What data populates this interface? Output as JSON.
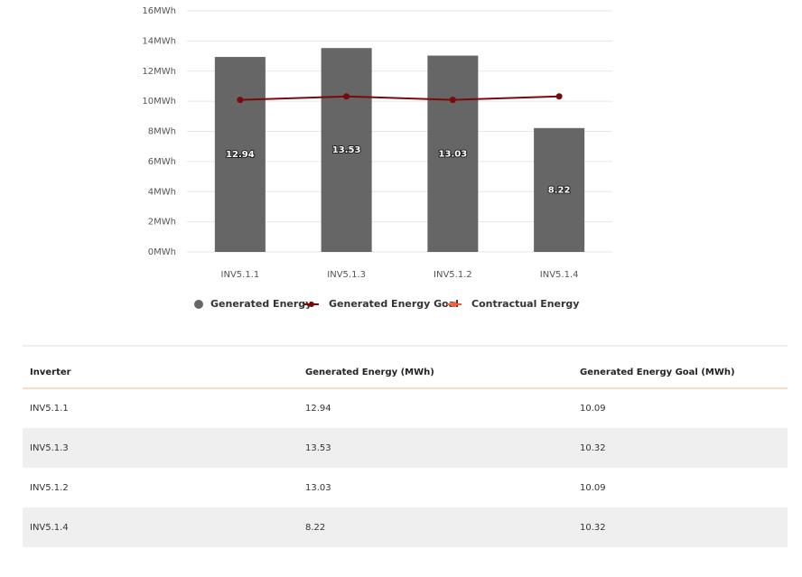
{
  "chart_data": {
    "type": "bar",
    "categories": [
      "INV5.1.1",
      "INV5.1.3",
      "INV5.1.2",
      "INV5.1.4"
    ],
    "series": [
      {
        "name": "Generated Energy",
        "type": "bar",
        "color": "#666666",
        "values": [
          12.94,
          13.53,
          13.03,
          8.22
        ]
      },
      {
        "name": "Generated Energy Goal",
        "type": "line",
        "color": "#7a0a0a",
        "values": [
          10.09,
          10.32,
          10.09,
          10.32
        ]
      },
      {
        "name": "Contractual Energy",
        "type": "line",
        "color": "#ff5a36",
        "values": [
          null,
          null,
          null,
          null
        ]
      }
    ],
    "ylim": [
      0,
      16
    ],
    "yticks": [
      {
        "value": 0,
        "label": "0MWh"
      },
      {
        "value": 2,
        "label": "2MWh"
      },
      {
        "value": 4,
        "label": "4MWh"
      },
      {
        "value": 6,
        "label": "6MWh"
      },
      {
        "value": 8,
        "label": "8MWh"
      },
      {
        "value": 10,
        "label": "10MWh"
      },
      {
        "value": 12,
        "label": "12MWh"
      },
      {
        "value": 14,
        "label": "14MWh"
      },
      {
        "value": 16,
        "label": "16MWh"
      }
    ],
    "grid": true,
    "legend": "bottom"
  },
  "table": {
    "header": [
      "Inverter",
      "Generated Energy (MWh)",
      "Generated Energy Goal (MWh)"
    ],
    "rows": [
      [
        "INV5.1.1",
        "12.94",
        "10.09"
      ],
      [
        "INV5.1.3",
        "13.53",
        "10.32"
      ],
      [
        "INV5.1.2",
        "13.03",
        "10.09"
      ],
      [
        "INV5.1.4",
        "8.22",
        "10.32"
      ]
    ]
  }
}
